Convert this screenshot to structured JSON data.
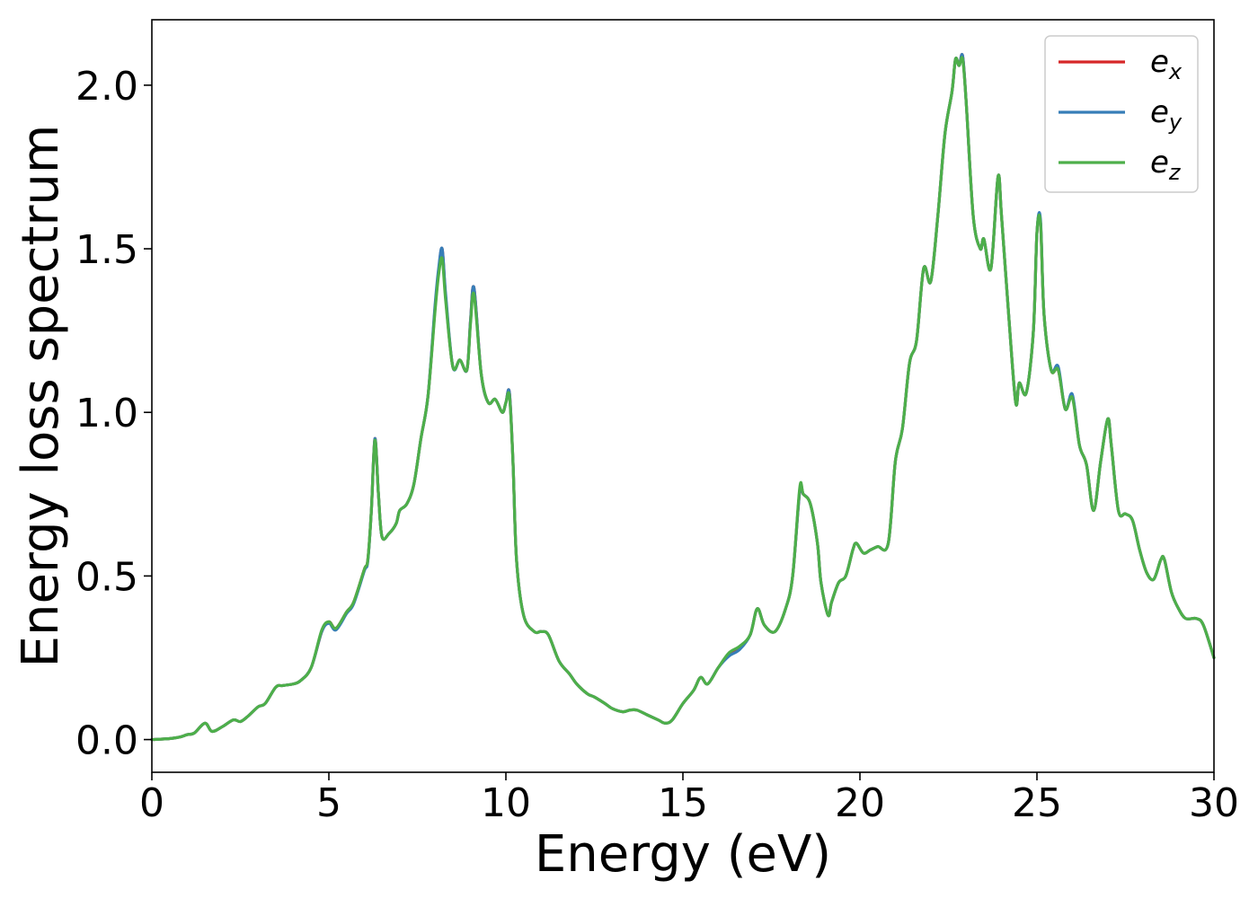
{
  "chart_data": {
    "type": "line",
    "xlabel": "Energy (eV)",
    "ylabel": "Energy loss spectrum",
    "xlim": [
      0,
      30
    ],
    "ylim": [
      -0.1,
      2.2
    ],
    "xticks": [
      0,
      5,
      10,
      15,
      20,
      25,
      30
    ],
    "xtick_labels": [
      "0",
      "5",
      "10",
      "15",
      "20",
      "25",
      "30"
    ],
    "yticks": [
      0.0,
      0.5,
      1.0,
      1.5,
      2.0
    ],
    "ytick_labels": [
      "0.0",
      "0.5",
      "1.0",
      "1.5",
      "2.0"
    ],
    "grid": false,
    "legend_position": "top-right",
    "legend": [
      {
        "base": "e",
        "sub": "x",
        "color": "#d62728"
      },
      {
        "base": "e",
        "sub": "y",
        "color": "#377eb8"
      },
      {
        "base": "e",
        "sub": "z",
        "color": "#4daf4a"
      }
    ],
    "series": [
      {
        "name": "e_x",
        "color": "#d62728",
        "x": [
          0,
          0.5,
          0.8,
          1.0,
          1.2,
          1.5,
          1.7,
          2.0,
          2.3,
          2.5,
          2.7,
          3.0,
          3.2,
          3.5,
          3.7,
          4.0,
          4.2,
          4.5,
          4.8,
          5.0,
          5.2,
          5.5,
          5.7,
          6.0,
          6.1,
          6.2,
          6.3,
          6.4,
          6.5,
          6.7,
          6.9,
          7.0,
          7.2,
          7.4,
          7.6,
          7.8,
          8.0,
          8.1,
          8.2,
          8.3,
          8.5,
          8.7,
          8.9,
          9.0,
          9.1,
          9.3,
          9.5,
          9.7,
          9.9,
          10.0,
          10.1,
          10.2,
          10.3,
          10.5,
          10.8,
          11.0,
          11.2,
          11.5,
          11.8,
          12.0,
          12.3,
          12.5,
          12.8,
          13.0,
          13.3,
          13.5,
          13.7,
          14.0,
          14.3,
          14.5,
          14.7,
          15.0,
          15.3,
          15.5,
          15.7,
          16.0,
          16.3,
          16.6,
          16.9,
          17.1,
          17.3,
          17.6,
          17.9,
          18.1,
          18.3,
          18.4,
          18.6,
          18.8,
          18.9,
          19.1,
          19.2,
          19.4,
          19.6,
          19.8,
          19.9,
          20.1,
          20.3,
          20.5,
          20.8,
          21.0,
          21.2,
          21.4,
          21.6,
          21.8,
          22.0,
          22.2,
          22.4,
          22.6,
          22.7,
          22.8,
          22.9,
          23.0,
          23.2,
          23.4,
          23.5,
          23.7,
          23.9,
          24.0,
          24.2,
          24.4,
          24.5,
          24.7,
          24.9,
          25.0,
          25.1,
          25.2,
          25.4,
          25.6,
          25.8,
          26.0,
          26.2,
          26.4,
          26.6,
          26.8,
          27.0,
          27.1,
          27.3,
          27.5,
          27.7,
          27.9,
          28.1,
          28.3,
          28.5,
          28.6,
          28.8,
          29.0,
          29.2,
          29.5,
          29.7,
          30.0
        ],
        "y": [
          0,
          0.003,
          0.008,
          0.015,
          0.02,
          0.05,
          0.025,
          0.04,
          0.06,
          0.055,
          0.07,
          0.1,
          0.11,
          0.16,
          0.165,
          0.17,
          0.18,
          0.22,
          0.33,
          0.36,
          0.34,
          0.39,
          0.42,
          0.52,
          0.55,
          0.7,
          0.92,
          0.75,
          0.62,
          0.63,
          0.66,
          0.7,
          0.72,
          0.78,
          0.92,
          1.05,
          1.32,
          1.43,
          1.5,
          1.35,
          1.14,
          1.16,
          1.13,
          1.28,
          1.38,
          1.12,
          1.03,
          1.04,
          1.0,
          1.03,
          1.06,
          0.85,
          0.55,
          0.38,
          0.33,
          0.33,
          0.32,
          0.24,
          0.2,
          0.17,
          0.14,
          0.13,
          0.11,
          0.095,
          0.085,
          0.09,
          0.09,
          0.075,
          0.06,
          0.05,
          0.06,
          0.11,
          0.15,
          0.19,
          0.17,
          0.22,
          0.26,
          0.28,
          0.32,
          0.4,
          0.35,
          0.33,
          0.4,
          0.5,
          0.76,
          0.75,
          0.72,
          0.6,
          0.48,
          0.38,
          0.42,
          0.48,
          0.5,
          0.58,
          0.6,
          0.57,
          0.58,
          0.59,
          0.6,
          0.85,
          0.95,
          1.15,
          1.22,
          1.44,
          1.4,
          1.6,
          1.85,
          1.98,
          2.08,
          2.06,
          2.09,
          1.95,
          1.6,
          1.5,
          1.53,
          1.44,
          1.72,
          1.6,
          1.3,
          1.03,
          1.09,
          1.06,
          1.25,
          1.55,
          1.58,
          1.3,
          1.13,
          1.13,
          1.01,
          1.05,
          0.9,
          0.84,
          0.7,
          0.85,
          0.98,
          0.9,
          0.7,
          0.69,
          0.67,
          0.58,
          0.51,
          0.49,
          0.55,
          0.55,
          0.45,
          0.4,
          0.37,
          0.37,
          0.35,
          0.25
        ]
      },
      {
        "name": "e_y",
        "color": "#377eb8",
        "x": [
          0,
          0.5,
          0.8,
          1.0,
          1.2,
          1.5,
          1.7,
          2.0,
          2.3,
          2.5,
          2.7,
          3.0,
          3.2,
          3.5,
          3.7,
          4.0,
          4.2,
          4.5,
          4.8,
          5.0,
          5.2,
          5.5,
          5.7,
          6.0,
          6.1,
          6.2,
          6.3,
          6.4,
          6.5,
          6.7,
          6.9,
          7.0,
          7.2,
          7.4,
          7.6,
          7.8,
          8.0,
          8.1,
          8.2,
          8.3,
          8.5,
          8.7,
          8.9,
          9.0,
          9.1,
          9.3,
          9.5,
          9.7,
          9.9,
          10.0,
          10.1,
          10.2,
          10.3,
          10.5,
          10.8,
          11.0,
          11.2,
          11.5,
          11.8,
          12.0,
          12.3,
          12.5,
          12.8,
          13.0,
          13.3,
          13.5,
          13.7,
          14.0,
          14.3,
          14.5,
          14.7,
          15.0,
          15.3,
          15.5,
          15.7,
          16.0,
          16.3,
          16.6,
          16.9,
          17.1,
          17.3,
          17.6,
          17.9,
          18.1,
          18.3,
          18.4,
          18.6,
          18.8,
          18.9,
          19.1,
          19.2,
          19.4,
          19.6,
          19.8,
          19.9,
          20.1,
          20.3,
          20.5,
          20.8,
          21.0,
          21.2,
          21.4,
          21.6,
          21.8,
          22.0,
          22.2,
          22.4,
          22.6,
          22.7,
          22.8,
          22.9,
          23.0,
          23.2,
          23.4,
          23.5,
          23.7,
          23.9,
          24.0,
          24.2,
          24.4,
          24.5,
          24.7,
          24.9,
          25.0,
          25.1,
          25.2,
          25.4,
          25.6,
          25.8,
          26.0,
          26.2,
          26.4,
          26.6,
          26.8,
          27.0,
          27.1,
          27.3,
          27.5,
          27.7,
          27.9,
          28.1,
          28.3,
          28.5,
          28.6,
          28.8,
          29.0,
          29.2,
          29.5,
          29.7,
          30.0
        ],
        "y": [
          0,
          0.003,
          0.008,
          0.015,
          0.02,
          0.05,
          0.025,
          0.04,
          0.06,
          0.055,
          0.07,
          0.1,
          0.11,
          0.16,
          0.165,
          0.17,
          0.18,
          0.22,
          0.33,
          0.355,
          0.335,
          0.385,
          0.415,
          0.515,
          0.545,
          0.7,
          0.92,
          0.75,
          0.62,
          0.63,
          0.66,
          0.7,
          0.72,
          0.78,
          0.92,
          1.05,
          1.33,
          1.44,
          1.5,
          1.36,
          1.14,
          1.16,
          1.13,
          1.28,
          1.38,
          1.12,
          1.03,
          1.04,
          1.0,
          1.03,
          1.06,
          0.85,
          0.55,
          0.38,
          0.33,
          0.33,
          0.32,
          0.24,
          0.2,
          0.17,
          0.14,
          0.13,
          0.11,
          0.095,
          0.085,
          0.09,
          0.09,
          0.075,
          0.06,
          0.05,
          0.06,
          0.11,
          0.15,
          0.19,
          0.17,
          0.22,
          0.255,
          0.275,
          0.32,
          0.4,
          0.35,
          0.33,
          0.4,
          0.5,
          0.76,
          0.75,
          0.72,
          0.6,
          0.48,
          0.38,
          0.42,
          0.48,
          0.5,
          0.58,
          0.6,
          0.57,
          0.58,
          0.59,
          0.6,
          0.85,
          0.95,
          1.15,
          1.22,
          1.44,
          1.4,
          1.6,
          1.85,
          1.98,
          2.08,
          2.06,
          2.09,
          1.95,
          1.6,
          1.5,
          1.53,
          1.44,
          1.72,
          1.6,
          1.3,
          1.03,
          1.09,
          1.06,
          1.25,
          1.55,
          1.59,
          1.3,
          1.13,
          1.14,
          1.01,
          1.055,
          0.9,
          0.84,
          0.7,
          0.85,
          0.98,
          0.9,
          0.7,
          0.69,
          0.67,
          0.58,
          0.51,
          0.49,
          0.55,
          0.55,
          0.45,
          0.4,
          0.37,
          0.37,
          0.35,
          0.25
        ]
      },
      {
        "name": "e_z",
        "color": "#4daf4a",
        "x": [
          0,
          0.5,
          0.8,
          1.0,
          1.2,
          1.5,
          1.7,
          2.0,
          2.3,
          2.5,
          2.7,
          3.0,
          3.2,
          3.5,
          3.7,
          4.0,
          4.2,
          4.5,
          4.8,
          5.0,
          5.2,
          5.5,
          5.7,
          6.0,
          6.1,
          6.2,
          6.3,
          6.4,
          6.5,
          6.7,
          6.9,
          7.0,
          7.2,
          7.4,
          7.6,
          7.8,
          8.0,
          8.1,
          8.2,
          8.3,
          8.5,
          8.7,
          8.9,
          9.0,
          9.1,
          9.3,
          9.5,
          9.7,
          9.9,
          10.0,
          10.1,
          10.2,
          10.3,
          10.5,
          10.8,
          11.0,
          11.2,
          11.5,
          11.8,
          12.0,
          12.3,
          12.5,
          12.8,
          13.0,
          13.3,
          13.5,
          13.7,
          14.0,
          14.3,
          14.5,
          14.7,
          15.0,
          15.3,
          15.5,
          15.7,
          16.0,
          16.3,
          16.6,
          16.9,
          17.1,
          17.3,
          17.6,
          17.9,
          18.1,
          18.3,
          18.4,
          18.6,
          18.8,
          18.9,
          19.1,
          19.2,
          19.4,
          19.6,
          19.8,
          19.9,
          20.1,
          20.3,
          20.5,
          20.8,
          21.0,
          21.2,
          21.4,
          21.6,
          21.8,
          22.0,
          22.2,
          22.4,
          22.6,
          22.7,
          22.8,
          22.9,
          23.0,
          23.2,
          23.4,
          23.5,
          23.7,
          23.9,
          24.0,
          24.2,
          24.4,
          24.5,
          24.7,
          24.9,
          25.0,
          25.1,
          25.2,
          25.4,
          25.6,
          25.8,
          26.0,
          26.2,
          26.4,
          26.6,
          26.8,
          27.0,
          27.1,
          27.3,
          27.5,
          27.7,
          27.9,
          28.1,
          28.3,
          28.5,
          28.6,
          28.8,
          29.0,
          29.2,
          29.5,
          29.7,
          30.0
        ],
        "y": [
          0,
          0.003,
          0.008,
          0.015,
          0.02,
          0.05,
          0.025,
          0.04,
          0.06,
          0.055,
          0.07,
          0.1,
          0.11,
          0.16,
          0.165,
          0.17,
          0.18,
          0.22,
          0.335,
          0.36,
          0.34,
          0.39,
          0.42,
          0.52,
          0.55,
          0.7,
          0.915,
          0.75,
          0.62,
          0.63,
          0.66,
          0.7,
          0.72,
          0.78,
          0.92,
          1.05,
          1.31,
          1.42,
          1.47,
          1.34,
          1.14,
          1.16,
          1.13,
          1.27,
          1.36,
          1.12,
          1.03,
          1.04,
          1.0,
          1.03,
          1.05,
          0.85,
          0.55,
          0.38,
          0.33,
          0.33,
          0.32,
          0.24,
          0.2,
          0.17,
          0.14,
          0.13,
          0.11,
          0.095,
          0.085,
          0.09,
          0.09,
          0.075,
          0.06,
          0.05,
          0.06,
          0.11,
          0.15,
          0.19,
          0.17,
          0.22,
          0.265,
          0.285,
          0.32,
          0.4,
          0.35,
          0.33,
          0.4,
          0.5,
          0.77,
          0.75,
          0.72,
          0.6,
          0.48,
          0.38,
          0.42,
          0.48,
          0.5,
          0.58,
          0.6,
          0.57,
          0.58,
          0.59,
          0.6,
          0.85,
          0.95,
          1.15,
          1.22,
          1.44,
          1.4,
          1.6,
          1.85,
          1.98,
          2.08,
          2.06,
          2.08,
          1.95,
          1.6,
          1.5,
          1.53,
          1.44,
          1.72,
          1.6,
          1.3,
          1.03,
          1.09,
          1.06,
          1.25,
          1.55,
          1.58,
          1.3,
          1.13,
          1.13,
          1.01,
          1.045,
          0.9,
          0.84,
          0.7,
          0.85,
          0.98,
          0.9,
          0.7,
          0.69,
          0.67,
          0.58,
          0.51,
          0.49,
          0.55,
          0.55,
          0.45,
          0.4,
          0.37,
          0.37,
          0.35,
          0.25
        ]
      }
    ]
  }
}
